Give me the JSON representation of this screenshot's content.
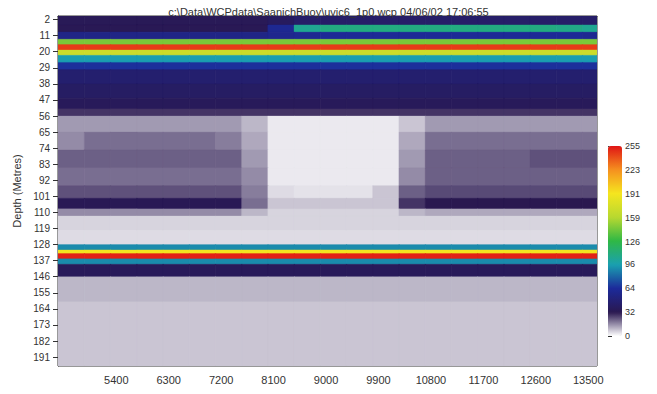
{
  "chart_data": {
    "type": "heatmap",
    "title": "c:\\Data\\WCPdata\\SaanichBuoy\\uvic6_1p0.wcp 04/06/02 17:06:55",
    "y_label": "Depth (Metres)",
    "xlim": [
      4400,
      13650
    ],
    "xticks": [
      5400,
      6300,
      7200,
      8100,
      9000,
      9900,
      10800,
      11700,
      12600,
      13500
    ],
    "ylim": [
      0,
      196
    ],
    "yticks": [
      2,
      11,
      20,
      29,
      38,
      47,
      56,
      65,
      74,
      83,
      92,
      101,
      110,
      119,
      128,
      137,
      146,
      155,
      164,
      173,
      182,
      191
    ],
    "x_edges": [
      4400,
      4850,
      5300,
      5750,
      6200,
      6650,
      7100,
      7550,
      8000,
      8450,
      8900,
      9350,
      9800,
      10250,
      10700,
      11150,
      11600,
      12050,
      12500,
      12950,
      13400,
      13650
    ],
    "depth_edges": [
      0,
      5,
      9,
      13,
      16,
      19,
      22,
      26,
      30,
      38,
      46,
      52,
      56,
      65,
      75,
      85,
      95,
      102,
      108,
      112,
      120,
      128,
      131,
      133,
      136,
      139,
      146,
      160,
      196
    ],
    "cells": [
      [
        35,
        35,
        35,
        35,
        35,
        35,
        35,
        35,
        38,
        42,
        42,
        42,
        42,
        42,
        42,
        42,
        42,
        42,
        42,
        42,
        42
      ],
      [
        34,
        34,
        34,
        34,
        34,
        34,
        34,
        34,
        60,
        105,
        110,
        110,
        110,
        110,
        110,
        110,
        110,
        110,
        110,
        108,
        105
      ],
      [
        55,
        55,
        55,
        55,
        55,
        55,
        55,
        55,
        58,
        60,
        62,
        62,
        62,
        62,
        62,
        62,
        62,
        62,
        62,
        62,
        60
      ],
      [
        145,
        145,
        145,
        145,
        145,
        145,
        145,
        145,
        145,
        145,
        145,
        145,
        145,
        145,
        145,
        145,
        145,
        145,
        145,
        145,
        145
      ],
      [
        245,
        245,
        245,
        245,
        245,
        245,
        245,
        245,
        245,
        245,
        245,
        245,
        245,
        245,
        245,
        245,
        245,
        245,
        245,
        245,
        245
      ],
      [
        170,
        170,
        170,
        170,
        170,
        170,
        170,
        170,
        170,
        170,
        170,
        170,
        170,
        170,
        170,
        170,
        170,
        170,
        170,
        170,
        170
      ],
      [
        95,
        95,
        95,
        95,
        95,
        95,
        95,
        95,
        95,
        95,
        95,
        95,
        95,
        95,
        95,
        95,
        95,
        95,
        95,
        95,
        95
      ],
      [
        65,
        65,
        65,
        65,
        65,
        65,
        65,
        65,
        65,
        65,
        65,
        65,
        65,
        65,
        65,
        65,
        65,
        65,
        65,
        65,
        65
      ],
      [
        45,
        45,
        45,
        45,
        45,
        45,
        45,
        45,
        45,
        45,
        45,
        45,
        45,
        45,
        45,
        45,
        45,
        45,
        45,
        45,
        45
      ],
      [
        40,
        40,
        40,
        40,
        40,
        40,
        40,
        40,
        40,
        40,
        40,
        40,
        40,
        40,
        40,
        40,
        40,
        40,
        40,
        40,
        40
      ],
      [
        36,
        36,
        36,
        36,
        36,
        36,
        36,
        36,
        36,
        36,
        36,
        36,
        36,
        36,
        36,
        36,
        36,
        36,
        36,
        36,
        36
      ],
      [
        28,
        28,
        28,
        28,
        28,
        28,
        28,
        28,
        28,
        28,
        28,
        28,
        28,
        28,
        28,
        28,
        28,
        28,
        28,
        28,
        28
      ],
      [
        14,
        14,
        14,
        14,
        14,
        14,
        14,
        10,
        3,
        3,
        3,
        3,
        3,
        8,
        14,
        14,
        14,
        14,
        14,
        14,
        14
      ],
      [
        16,
        20,
        20,
        20,
        20,
        20,
        18,
        12,
        3,
        3,
        3,
        3,
        3,
        12,
        20,
        20,
        20,
        20,
        20,
        20,
        20
      ],
      [
        22,
        22,
        22,
        22,
        22,
        22,
        22,
        14,
        3,
        3,
        3,
        3,
        3,
        14,
        22,
        22,
        22,
        22,
        24,
        24,
        24
      ],
      [
        20,
        20,
        20,
        20,
        20,
        20,
        20,
        16,
        3,
        3,
        3,
        3,
        3,
        16,
        22,
        22,
        22,
        22,
        22,
        22,
        22
      ],
      [
        24,
        24,
        24,
        24,
        24,
        24,
        24,
        18,
        5,
        4,
        4,
        4,
        8,
        22,
        25,
        25,
        25,
        25,
        25,
        25,
        25
      ],
      [
        34,
        34,
        34,
        34,
        34,
        34,
        34,
        20,
        8,
        8,
        8,
        8,
        8,
        28,
        32,
        32,
        32,
        32,
        32,
        32,
        32
      ],
      [
        16,
        16,
        16,
        16,
        16,
        16,
        16,
        10,
        6,
        6,
        6,
        6,
        6,
        10,
        12,
        12,
        12,
        12,
        12,
        12,
        12
      ],
      [
        6,
        6,
        6,
        6,
        6,
        6,
        6,
        6,
        6,
        6,
        6,
        6,
        6,
        6,
        6,
        6,
        6,
        6,
        6,
        6,
        6
      ],
      [
        5,
        5,
        5,
        5,
        5,
        5,
        5,
        5,
        5,
        5,
        5,
        5,
        5,
        5,
        5,
        5,
        5,
        5,
        5,
        5,
        5
      ],
      [
        90,
        90,
        90,
        90,
        90,
        90,
        90,
        90,
        90,
        90,
        90,
        90,
        90,
        90,
        90,
        90,
        90,
        90,
        90,
        90,
        90
      ],
      [
        190,
        190,
        190,
        190,
        190,
        190,
        190,
        190,
        190,
        190,
        190,
        190,
        190,
        190,
        190,
        190,
        190,
        190,
        190,
        190,
        190
      ],
      [
        252,
        252,
        252,
        252,
        252,
        252,
        252,
        252,
        252,
        252,
        252,
        252,
        252,
        252,
        252,
        252,
        252,
        252,
        252,
        252,
        252
      ],
      [
        90,
        90,
        90,
        90,
        90,
        90,
        90,
        90,
        90,
        90,
        90,
        90,
        90,
        90,
        90,
        90,
        90,
        90,
        90,
        90,
        90
      ],
      [
        36,
        36,
        36,
        36,
        36,
        36,
        36,
        36,
        36,
        36,
        36,
        36,
        36,
        36,
        36,
        36,
        36,
        36,
        36,
        36,
        36
      ],
      [
        10,
        10,
        10,
        10,
        10,
        10,
        10,
        10,
        10,
        10,
        10,
        10,
        10,
        10,
        10,
        10,
        10,
        10,
        10,
        10,
        10
      ],
      [
        8,
        8,
        8,
        8,
        8,
        8,
        8,
        8,
        8,
        8,
        8,
        8,
        8,
        8,
        8,
        8,
        8,
        8,
        8,
        8,
        8
      ]
    ],
    "colorbar_range": [
      0,
      255
    ],
    "colorbar_ticks": [
      0,
      32,
      64,
      96,
      126,
      159,
      191,
      223,
      255
    ]
  }
}
